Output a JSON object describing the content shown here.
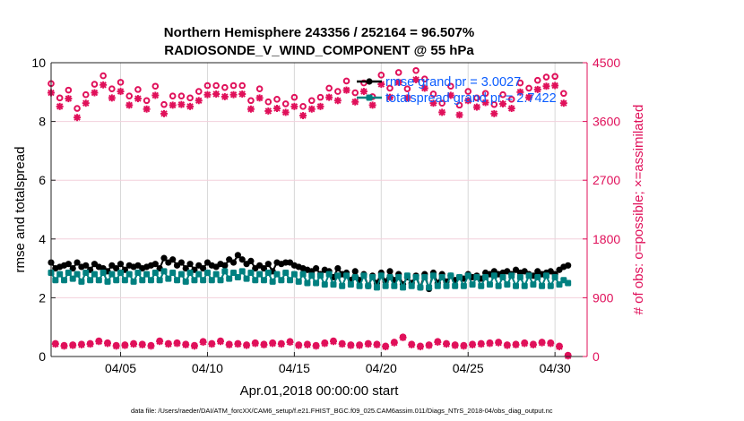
{
  "chart_data": {
    "type": "line",
    "title": [
      "Northern Hemisphere 243356 / 252164 = 96.507%",
      "RADIOSONDE_V_WIND_COMPONENT @ 55 hPa"
    ],
    "xlabel": "Apr.01,2018 00:00:00 start",
    "ylabel": "rmse and totalspread",
    "y2label": "# of obs: o=possible; ×=assimilated",
    "footer": "data file: /Users/raeder/DAI/ATM_forcXX/CAM6_setup/f.e21.FHIST_BGC.f09_025.CAM6assim.011/Diags_NTrS_2018-04/obs_diag_output.nc",
    "xlim_days": [
      0,
      30.85
    ],
    "ylim": [
      0,
      10
    ],
    "y2lim": [
      0,
      4500
    ],
    "xticks": [
      {
        "day": 4,
        "label": "04/05"
      },
      {
        "day": 9,
        "label": "04/10"
      },
      {
        "day": 14,
        "label": "04/15"
      },
      {
        "day": 19,
        "label": "04/20"
      },
      {
        "day": 24,
        "label": "04/25"
      },
      {
        "day": 29,
        "label": "04/30"
      }
    ],
    "yticks": [
      "0",
      "2",
      "4",
      "6",
      "8",
      "10"
    ],
    "y2ticks": [
      "0",
      "900",
      "1800",
      "2700",
      "3600",
      "4500"
    ],
    "legend": {
      "position": "top-right",
      "entries": [
        "rmse grand pr = 3.0027",
        "totalspread grand pr = 2.7422"
      ]
    },
    "colors": {
      "rmse": "#000000",
      "spread": "#008080",
      "obs": "#e0105a",
      "legend_text": "#0a5cff",
      "grid": "#d8d8d8",
      "obs_grid": "#f3d0dc"
    },
    "series": [
      {
        "name": "rmse",
        "axis": "left",
        "x_start_days": 0,
        "x_step_days": 0.25,
        "values": [
          3.2,
          3.0,
          3.05,
          3.1,
          3.15,
          3.0,
          3.2,
          3.05,
          3.1,
          2.95,
          3.15,
          3.05,
          3.0,
          2.9,
          3.1,
          3.0,
          3.15,
          2.95,
          3.1,
          3.05,
          3.1,
          3.0,
          3.05,
          3.1,
          3.15,
          3.0,
          3.35,
          3.2,
          3.3,
          3.1,
          3.2,
          3.0,
          3.15,
          2.95,
          3.1,
          3.0,
          3.2,
          3.1,
          3.05,
          3.15,
          3.1,
          3.3,
          3.2,
          3.45,
          3.3,
          3.15,
          3.25,
          3.0,
          3.1,
          3.0,
          3.15,
          2.9,
          3.2,
          3.15,
          3.2,
          3.2,
          3.1,
          3.05,
          3.0,
          2.95,
          2.9,
          3.0,
          2.8,
          2.95,
          2.9,
          2.7,
          3.0,
          2.8,
          2.85,
          2.6,
          2.9,
          2.6,
          2.8,
          2.4,
          2.75,
          2.5,
          2.85,
          2.55,
          2.9,
          2.6,
          2.8,
          2.45,
          2.7,
          2.5,
          2.75,
          2.35,
          2.8,
          2.3,
          2.85,
          2.5,
          2.8,
          2.55,
          2.75,
          2.6,
          2.7,
          2.65,
          2.8,
          2.7,
          2.75,
          2.65,
          2.85,
          2.8,
          2.9,
          2.8,
          2.85,
          2.9,
          2.8,
          2.95,
          2.85,
          2.9,
          2.8,
          2.75,
          2.9,
          2.8,
          2.85,
          2.9,
          2.8,
          2.95,
          3.05,
          3.1
        ]
      },
      {
        "name": "totalspread",
        "axis": "left",
        "x_start_days": 0,
        "x_step_days": 0.25,
        "values": [
          2.85,
          2.6,
          2.8,
          2.6,
          2.85,
          2.65,
          2.8,
          2.55,
          2.85,
          2.6,
          2.8,
          2.6,
          2.85,
          2.55,
          2.8,
          2.6,
          2.85,
          2.6,
          2.8,
          2.55,
          2.85,
          2.6,
          2.8,
          2.6,
          2.85,
          2.6,
          2.9,
          2.65,
          2.85,
          2.6,
          2.8,
          2.55,
          2.85,
          2.6,
          2.8,
          2.6,
          2.85,
          2.6,
          2.8,
          2.6,
          2.9,
          2.65,
          2.85,
          2.7,
          2.9,
          2.65,
          2.85,
          2.6,
          2.8,
          2.6,
          2.85,
          2.55,
          2.8,
          2.6,
          2.85,
          2.6,
          2.8,
          2.55,
          2.8,
          2.5,
          2.75,
          2.5,
          2.75,
          2.45,
          2.8,
          2.45,
          2.75,
          2.4,
          2.75,
          2.45,
          2.7,
          2.4,
          2.75,
          2.4,
          2.7,
          2.35,
          2.75,
          2.4,
          2.7,
          2.4,
          2.7,
          2.35,
          2.75,
          2.4,
          2.7,
          2.35,
          2.7,
          2.35,
          2.75,
          2.4,
          2.7,
          2.4,
          2.75,
          2.4,
          2.7,
          2.4,
          2.75,
          2.45,
          2.7,
          2.4,
          2.7,
          2.45,
          2.75,
          2.4,
          2.7,
          2.45,
          2.75,
          2.4,
          2.7,
          2.4,
          2.75,
          2.45,
          2.7,
          2.4,
          2.75,
          2.4,
          2.7,
          2.45,
          2.6,
          2.5
        ]
      },
      {
        "name": "possible_00_12Z",
        "axis": "right",
        "marker": "o",
        "x_start_days": 0,
        "x_step_days": 0.5,
        "values": [
          4180,
          3960,
          4080,
          3800,
          4010,
          4170,
          4300,
          4100,
          4200,
          3990,
          4090,
          3920,
          4140,
          3860,
          3990,
          3990,
          3960,
          4060,
          4150,
          4150,
          4120,
          4150,
          4150,
          3920,
          4100,
          3900,
          3940,
          3870,
          3970,
          3830,
          3920,
          3970,
          4110,
          4060,
          4220,
          4040,
          4190,
          3980,
          4310,
          4110,
          4350,
          4100,
          4380,
          4250,
          4020,
          3880,
          4140,
          3850,
          4060,
          3960,
          4030,
          3860,
          4010,
          3940,
          4190,
          4110,
          4230,
          4280,
          4290,
          4030
        ]
      },
      {
        "name": "assimilated_00_12Z",
        "axis": "right",
        "marker": "*",
        "x_start_days": 0,
        "x_step_days": 0.5,
        "values": [
          4040,
          3830,
          3950,
          3660,
          3880,
          4040,
          4160,
          3960,
          4060,
          3850,
          3950,
          3790,
          4000,
          3720,
          3850,
          3860,
          3830,
          3920,
          4010,
          4020,
          3980,
          4010,
          4020,
          3790,
          3960,
          3760,
          3800,
          3740,
          3830,
          3690,
          3790,
          3830,
          3970,
          3920,
          4080,
          3900,
          4060,
          3850,
          4170,
          3970,
          4200,
          3960,
          4240,
          4110,
          3880,
          3740,
          4000,
          3700,
          3920,
          3820,
          3890,
          3720,
          3870,
          3800,
          4050,
          3970,
          4090,
          4140,
          4150,
          3880
        ]
      },
      {
        "name": "possible_06_18Z",
        "axis": "right",
        "marker": "o",
        "x_start_days": 0.25,
        "x_step_days": 0.5,
        "values": [
          200,
          170,
          180,
          190,
          200,
          240,
          210,
          170,
          180,
          200,
          190,
          170,
          240,
          200,
          210,
          190,
          170,
          230,
          200,
          240,
          190,
          200,
          180,
          210,
          190,
          210,
          200,
          230,
          180,
          190,
          170,
          210,
          240,
          200,
          180,
          180,
          200,
          190,
          160,
          220,
          300,
          190,
          160,
          180,
          230,
          200,
          180,
          170,
          190,
          200,
          210,
          220,
          180,
          190,
          210,
          190,
          220,
          210,
          160,
          20
        ]
      },
      {
        "name": "assimilated_06_18Z",
        "axis": "right",
        "marker": "*",
        "x_start_days": 0.25,
        "x_step_days": 0.5,
        "values": [
          190,
          160,
          170,
          180,
          190,
          230,
          200,
          160,
          170,
          190,
          180,
          160,
          230,
          190,
          200,
          180,
          160,
          220,
          190,
          230,
          180,
          190,
          170,
          200,
          180,
          200,
          190,
          220,
          170,
          180,
          160,
          200,
          230,
          190,
          170,
          170,
          190,
          180,
          150,
          210,
          290,
          180,
          150,
          170,
          220,
          190,
          170,
          160,
          180,
          190,
          200,
          210,
          170,
          180,
          200,
          180,
          210,
          200,
          150,
          10
        ]
      }
    ]
  }
}
